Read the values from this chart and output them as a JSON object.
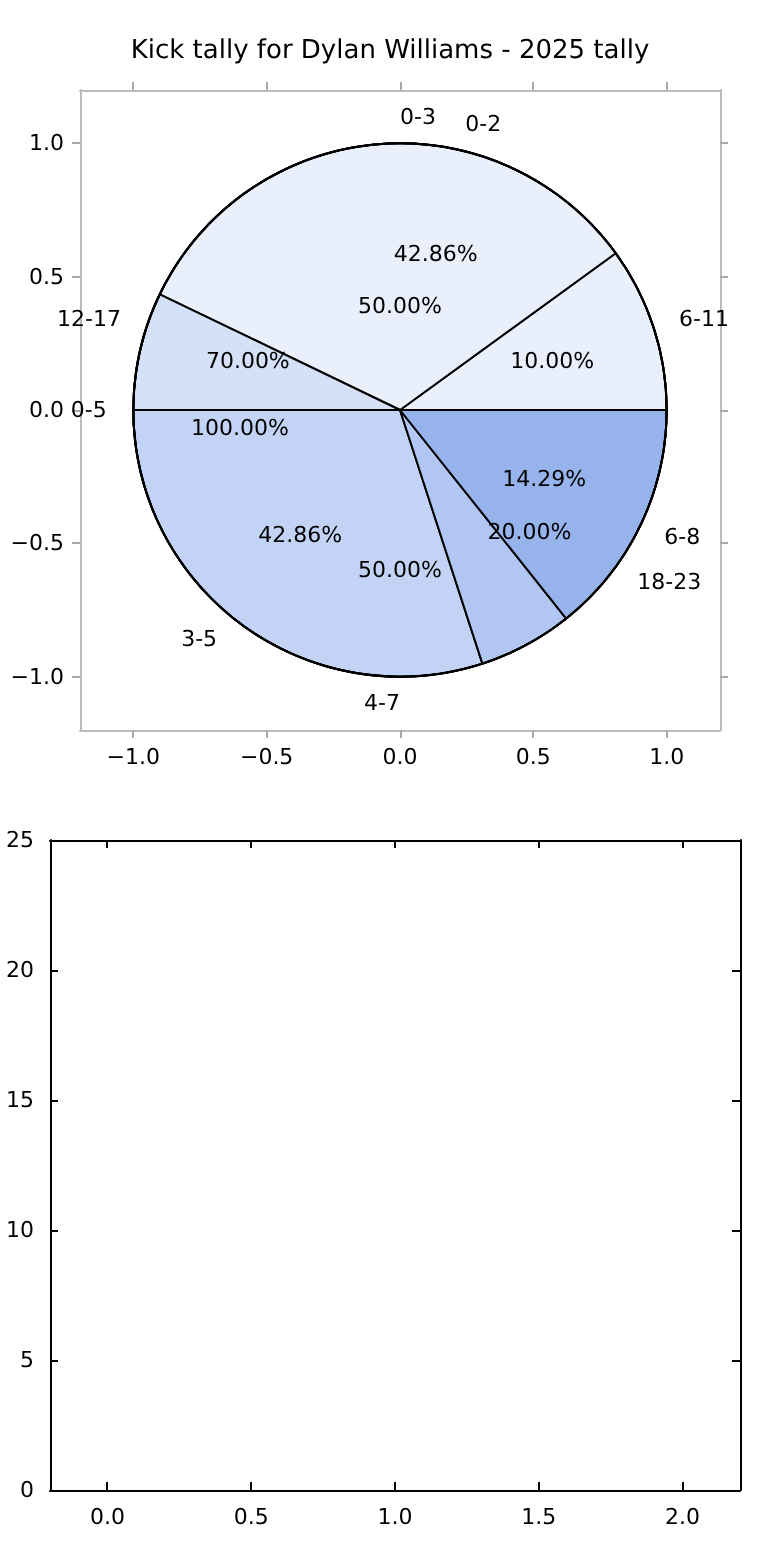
{
  "chart_data": [
    {
      "type": "scatter",
      "title": "Kick tally for Dylan Williams - 2025 tally",
      "xlim": [
        -1.2,
        1.2
      ],
      "ylim": [
        -1.2,
        1.2
      ],
      "xticks": [
        {
          "value": -1,
          "label": "−1.0"
        },
        {
          "value": -0.5,
          "label": "−0.5"
        },
        {
          "value": 0,
          "label": "0.0"
        },
        {
          "value": 0.5,
          "label": "0.5"
        },
        {
          "value": 1,
          "label": "1.0"
        }
      ],
      "yticks": [
        {
          "value": -1,
          "label": "−1.0"
        },
        {
          "value": -0.5,
          "label": "−0.5"
        },
        {
          "value": 0,
          "label": "0.0"
        },
        {
          "value": 0.5,
          "label": "0.5"
        },
        {
          "value": 1,
          "label": "1.0"
        }
      ]
    },
    {
      "type": "pie",
      "categories": [
        "0-2",
        "3-5",
        "6-8"
      ],
      "values": [
        42.86,
        42.86,
        14.29
      ],
      "value_labels": [
        "42.86%",
        "42.86%",
        "14.29%"
      ],
      "colors": [
        "#ffffff",
        "#e9f0fc",
        "#c6d8f5"
      ]
    },
    {
      "type": "pie",
      "categories": [
        "0-3",
        "4-7"
      ],
      "values": [
        50,
        50
      ],
      "value_labels": [
        "50.00%",
        "50.00%"
      ],
      "colors": [
        "#ffffff",
        "#e9f0fc"
      ]
    },
    {
      "type": "pie",
      "categories": [
        "0-5"
      ],
      "values": [
        100
      ],
      "value_labels": [
        "100.00%"
      ],
      "colors": [
        "#e9f0fc"
      ]
    },
    {
      "type": "pie",
      "categories": [
        "6-11",
        "12-17",
        "18-23"
      ],
      "values": [
        10,
        70,
        20
      ],
      "value_labels": [
        "10.00%",
        "70.00%",
        "20.00%"
      ],
      "colors": [
        "#ffffff",
        "#ffffff",
        "#e9f0fc"
      ]
    },
    {
      "type": "scatter",
      "xlim": [
        -0.2,
        2.2
      ],
      "ylim": [
        0,
        25
      ],
      "xticks": [
        {
          "value": 0,
          "label": "0.0"
        },
        {
          "value": 0.5,
          "label": "0.5"
        },
        {
          "value": 1,
          "label": "1.0"
        },
        {
          "value": 1.5,
          "label": "1.5"
        },
        {
          "value": 2,
          "label": "2.0"
        }
      ],
      "yticks": [
        0,
        5,
        10,
        15,
        20,
        25
      ]
    }
  ]
}
